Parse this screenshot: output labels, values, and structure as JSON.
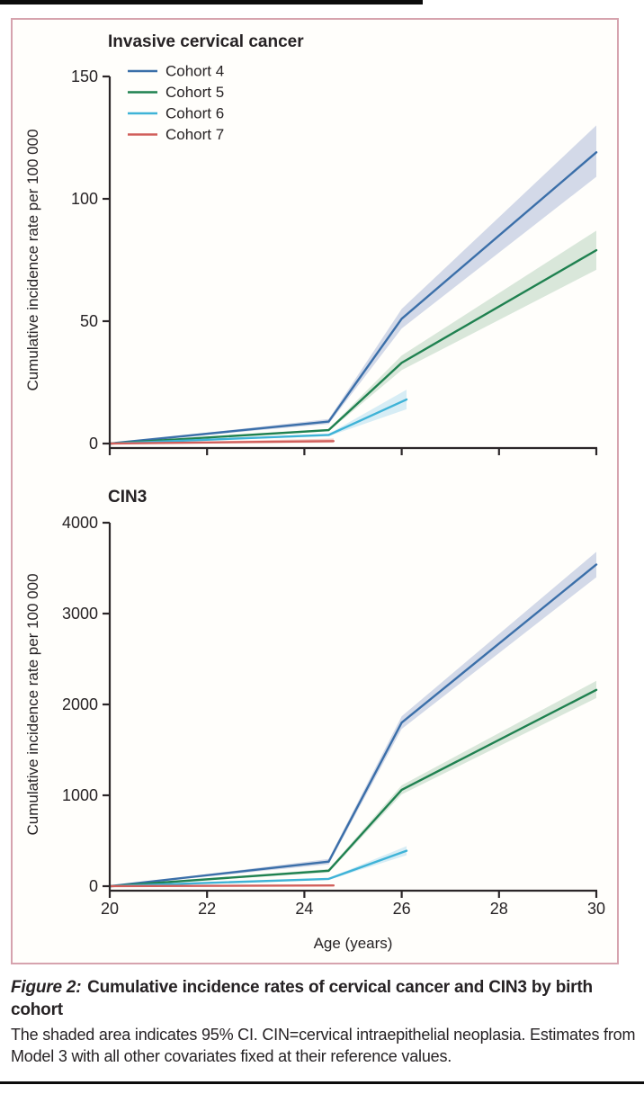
{
  "caption": {
    "prefix": "Figure 2:",
    "title": "Cumulative incidence rates of cervical cancer and CIN3 by birth cohort",
    "body": "The shaded area indicates 95% CI. CIN=cervical intraepithelial neoplasia. Estimates from Model 3 with all other covariates fixed at their reference values."
  },
  "colors": {
    "border_pink": "#d6a3ae",
    "axis": "#2b2628",
    "cohort4": "#3b6fa9",
    "cohort5": "#1f8150",
    "cohort6": "#3fb3d7",
    "cohort7": "#d15f5b"
  },
  "chart_data": [
    {
      "type": "line",
      "title": "Invasive cervical cancer",
      "xlabel": "",
      "ylabel": "Cumulative incidence rate per 100 000",
      "xlim": [
        20,
        30
      ],
      "ylim": [
        0,
        150
      ],
      "xticks": [
        20,
        22,
        24,
        26,
        28,
        30
      ],
      "show_x_tick_labels": false,
      "yticks": [
        0,
        50,
        100,
        150
      ],
      "grid": false,
      "legend_position": "upper-left-inside",
      "show_legend": true,
      "series": [
        {
          "name": "Cohort 4",
          "color": "#3b6fa9",
          "band_color": "#d3d9e8",
          "x": [
            20,
            24.5,
            26,
            30
          ],
          "y": [
            0,
            9,
            51,
            119
          ],
          "ci_lower": [
            0,
            8,
            47,
            109
          ],
          "ci_upper": [
            0,
            10,
            55,
            130
          ]
        },
        {
          "name": "Cohort 5",
          "color": "#1f8150",
          "band_color": "#d9e7da",
          "x": [
            20,
            24.5,
            26,
            30
          ],
          "y": [
            0,
            5.5,
            33,
            79
          ],
          "ci_lower": [
            0,
            5,
            30,
            71
          ],
          "ci_upper": [
            0,
            6,
            36,
            87
          ]
        },
        {
          "name": "Cohort 6",
          "color": "#3fb3d7",
          "band_color": "#d7edf5",
          "x": [
            20,
            24.5,
            26.1
          ],
          "y": [
            0,
            3.5,
            18
          ],
          "ci_lower": [
            0,
            3,
            14
          ],
          "ci_upper": [
            0,
            4,
            22
          ]
        },
        {
          "name": "Cohort 7",
          "color": "#d15f5b",
          "band_color": "#f2cdc6",
          "x": [
            20,
            24.6
          ],
          "y": [
            0,
            1
          ],
          "ci_lower": [
            0,
            0.3
          ],
          "ci_upper": [
            0,
            2
          ]
        }
      ]
    },
    {
      "type": "line",
      "title": "CIN3",
      "xlabel": "Age (years)",
      "ylabel": "Cumulative incidence rate per 100 000",
      "xlim": [
        20,
        30
      ],
      "ylim": [
        0,
        4000
      ],
      "xticks": [
        20,
        22,
        24,
        26,
        28,
        30
      ],
      "show_x_tick_labels": true,
      "yticks": [
        0,
        1000,
        2000,
        3000,
        4000
      ],
      "grid": false,
      "show_legend": false,
      "series": [
        {
          "name": "Cohort 4",
          "color": "#3b6fa9",
          "band_color": "#d3d9e8",
          "x": [
            20,
            24.5,
            26,
            30
          ],
          "y": [
            0,
            270,
            1800,
            3540
          ],
          "ci_lower": [
            0,
            240,
            1730,
            3400
          ],
          "ci_upper": [
            0,
            300,
            1870,
            3680
          ]
        },
        {
          "name": "Cohort 5",
          "color": "#1f8150",
          "band_color": "#d9e7da",
          "x": [
            20,
            24.5,
            26,
            30
          ],
          "y": [
            0,
            170,
            1060,
            2160
          ],
          "ci_lower": [
            0,
            150,
            1010,
            2070
          ],
          "ci_upper": [
            0,
            190,
            1110,
            2260
          ]
        },
        {
          "name": "Cohort 6",
          "color": "#3fb3d7",
          "band_color": "#d7edf5",
          "x": [
            20,
            24.5,
            26.1
          ],
          "y": [
            0,
            80,
            390
          ],
          "ci_lower": [
            0,
            70,
            340
          ],
          "ci_upper": [
            0,
            90,
            440
          ]
        },
        {
          "name": "Cohort 7",
          "color": "#d15f5b",
          "band_color": "#f2cdc6",
          "x": [
            20,
            24.6
          ],
          "y": [
            0,
            8
          ],
          "ci_lower": [
            0,
            2
          ],
          "ci_upper": [
            0,
            18
          ]
        }
      ]
    }
  ]
}
